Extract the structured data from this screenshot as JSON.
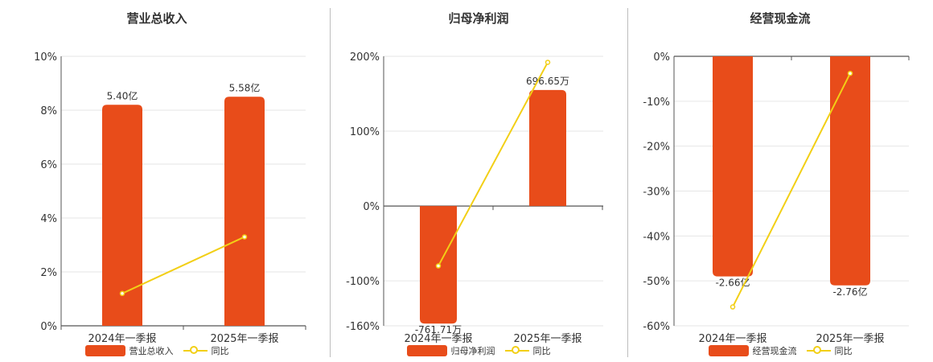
{
  "colors": {
    "bar": "#E84C1A",
    "line": "#F2CF16",
    "grid": "#e6e6e6",
    "axis": "#555555"
  },
  "chart_data": [
    {
      "type": "bar",
      "title": "营业总收入",
      "categories": [
        "2024年一季报",
        "2025年一季报"
      ],
      "series": [
        {
          "name": "营业总收入",
          "type": "bar",
          "values": [
            8.2,
            8.5
          ],
          "labels": [
            "5.40亿",
            "5.58亿"
          ]
        },
        {
          "name": "同比",
          "type": "line",
          "values": [
            1.2,
            3.3
          ]
        }
      ],
      "ylim": [
        0,
        10
      ],
      "yticks": [
        "0%",
        "2%",
        "4%",
        "6%",
        "8%",
        "10%"
      ],
      "grid": true,
      "legend": "bottom"
    },
    {
      "type": "bar",
      "title": "归母净利润",
      "categories": [
        "2024年一季报",
        "2025年一季报"
      ],
      "series": [
        {
          "name": "归母净利润",
          "type": "bar",
          "values": [
            -157,
            155
          ],
          "labels": [
            "-761.71万",
            "696.65万"
          ]
        },
        {
          "name": "同比",
          "type": "line",
          "values": [
            -80,
            192
          ]
        }
      ],
      "ylim": [
        -160,
        200
      ],
      "yticks": [
        "-160%",
        "-100%",
        "0%",
        "100%",
        "200%"
      ],
      "grid": true,
      "legend": "bottom"
    },
    {
      "type": "bar",
      "title": "经营现金流",
      "categories": [
        "2024年一季报",
        "2025年一季报"
      ],
      "series": [
        {
          "name": "经营现金流",
          "type": "bar",
          "values": [
            -49,
            -51
          ],
          "labels": [
            "-2.66亿",
            "-2.76亿"
          ]
        },
        {
          "name": "同比",
          "type": "line",
          "values": [
            -55.8,
            -3.8
          ]
        }
      ],
      "ylim": [
        -60,
        0
      ],
      "yticks": [
        "-60%",
        "-50%",
        "-40%",
        "-30%",
        "-20%",
        "-10%",
        "0%"
      ],
      "grid": true,
      "legend": "bottom"
    }
  ]
}
